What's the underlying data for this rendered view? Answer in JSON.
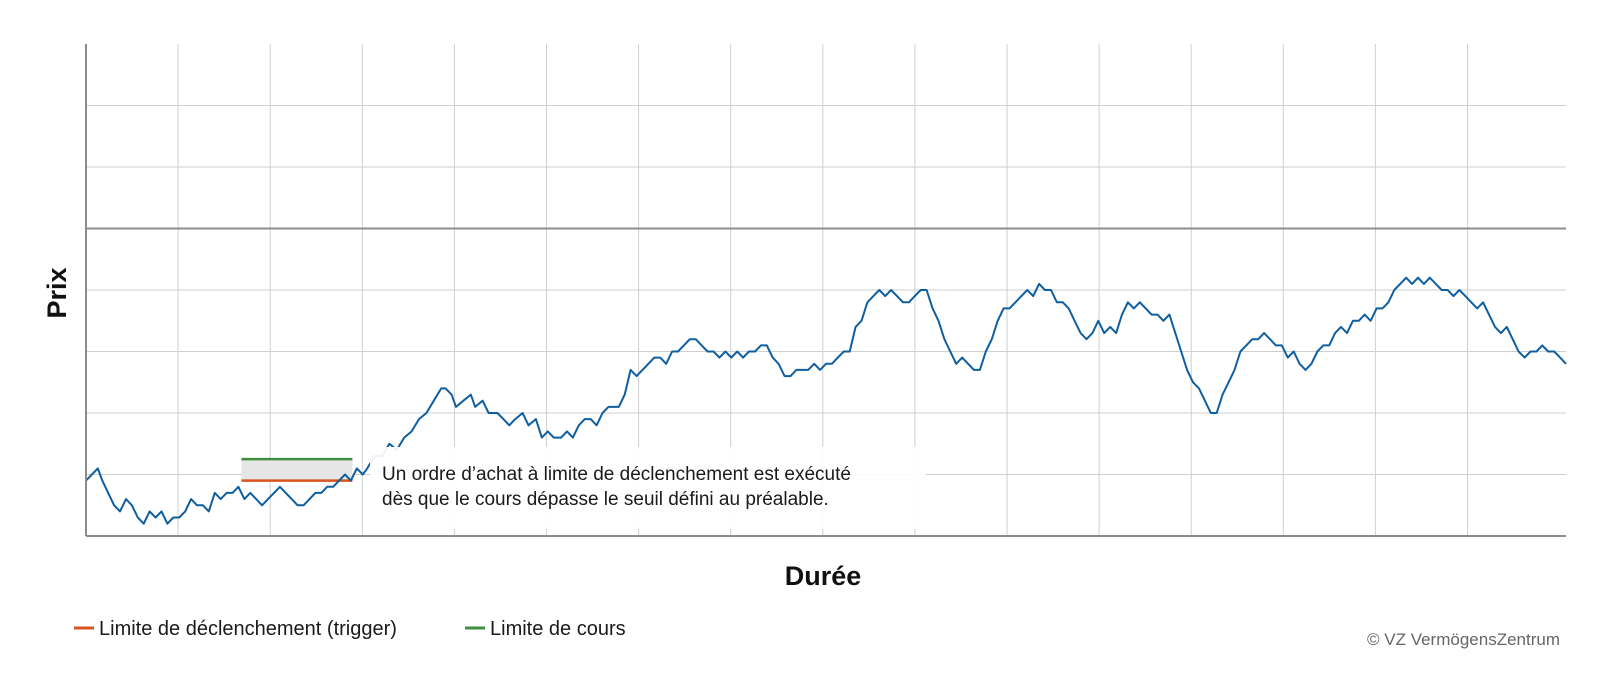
{
  "chart_data": {
    "type": "line",
    "title": "",
    "xlabel": "Durée",
    "ylabel": "Prix",
    "grid": true,
    "axis_tick_labels_shown": false,
    "reference_line": {
      "y": 50,
      "label": ""
    },
    "xlim": [
      0,
      100
    ],
    "ylim": [
      0,
      80
    ],
    "series": [
      {
        "name": "",
        "color": "#0f5fa0",
        "points": [
          [
            0,
            9
          ],
          [
            0.4,
            10
          ],
          [
            0.8,
            11
          ],
          [
            1.1,
            9
          ],
          [
            1.5,
            7
          ],
          [
            1.9,
            5
          ],
          [
            2.3,
            4
          ],
          [
            2.7,
            6
          ],
          [
            3.1,
            5
          ],
          [
            3.5,
            3
          ],
          [
            3.9,
            2
          ],
          [
            4.3,
            4
          ],
          [
            4.7,
            3
          ],
          [
            5.1,
            4
          ],
          [
            5.5,
            2
          ],
          [
            5.9,
            3
          ],
          [
            6.3,
            3
          ],
          [
            6.7,
            4
          ],
          [
            7.1,
            6
          ],
          [
            7.5,
            5
          ],
          [
            7.9,
            5
          ],
          [
            8.3,
            4
          ],
          [
            8.7,
            7
          ],
          [
            9.1,
            6
          ],
          [
            9.5,
            7
          ],
          [
            9.9,
            7
          ],
          [
            10.3,
            8
          ],
          [
            10.7,
            6
          ],
          [
            11.1,
            7
          ],
          [
            11.5,
            6
          ],
          [
            11.9,
            5
          ],
          [
            12.3,
            6
          ],
          [
            12.7,
            7
          ],
          [
            13.1,
            8
          ],
          [
            13.5,
            7
          ],
          [
            13.9,
            6
          ],
          [
            14.3,
            5
          ],
          [
            14.7,
            5
          ],
          [
            15.1,
            6
          ],
          [
            15.5,
            7
          ],
          [
            15.9,
            7
          ],
          [
            16.3,
            8
          ],
          [
            16.7,
            8
          ],
          [
            17.1,
            9
          ],
          [
            17.5,
            10
          ],
          [
            17.9,
            9
          ],
          [
            18.3,
            11
          ],
          [
            18.7,
            10
          ],
          [
            19,
            11
          ],
          [
            19.5,
            13
          ],
          [
            20,
            13
          ],
          [
            20.5,
            15
          ],
          [
            21,
            14
          ],
          [
            21.5,
            16
          ],
          [
            22,
            17
          ],
          [
            22.5,
            19
          ],
          [
            23,
            20
          ],
          [
            23.5,
            22
          ],
          [
            24,
            24
          ],
          [
            24.3,
            24
          ],
          [
            24.7,
            23
          ],
          [
            25,
            21
          ],
          [
            25.5,
            22
          ],
          [
            26,
            23
          ],
          [
            26.3,
            21
          ],
          [
            26.8,
            22
          ],
          [
            27.2,
            20
          ],
          [
            27.8,
            20
          ],
          [
            28.2,
            19
          ],
          [
            28.6,
            18
          ],
          [
            29,
            19
          ],
          [
            29.5,
            20
          ],
          [
            29.9,
            18
          ],
          [
            30.4,
            19
          ],
          [
            30.8,
            16
          ],
          [
            31.2,
            17
          ],
          [
            31.6,
            16
          ],
          [
            32.1,
            16
          ],
          [
            32.5,
            17
          ],
          [
            32.9,
            16
          ],
          [
            33.3,
            18
          ],
          [
            33.7,
            19
          ],
          [
            34.1,
            19
          ],
          [
            34.5,
            18
          ],
          [
            34.9,
            20
          ],
          [
            35.3,
            21
          ],
          [
            35.7,
            21
          ],
          [
            36,
            21
          ],
          [
            36.4,
            23
          ],
          [
            36.8,
            27
          ],
          [
            37.2,
            26
          ],
          [
            37.6,
            27
          ],
          [
            38,
            28
          ],
          [
            38.4,
            29
          ],
          [
            38.8,
            29
          ],
          [
            39.2,
            28
          ],
          [
            39.6,
            30
          ],
          [
            40,
            30
          ],
          [
            40.4,
            31
          ],
          [
            40.8,
            32
          ],
          [
            41.2,
            32
          ],
          [
            41.6,
            31
          ],
          [
            42,
            30
          ],
          [
            42.4,
            30
          ],
          [
            42.8,
            29
          ],
          [
            43.2,
            30
          ],
          [
            43.6,
            29
          ],
          [
            44,
            30
          ],
          [
            44.4,
            29
          ],
          [
            44.8,
            30
          ],
          [
            45.2,
            30
          ],
          [
            45.6,
            31
          ],
          [
            46,
            31
          ],
          [
            46.4,
            29
          ],
          [
            46.8,
            28
          ],
          [
            47.2,
            26
          ],
          [
            47.6,
            26
          ],
          [
            48,
            27
          ],
          [
            48.4,
            27
          ],
          [
            48.8,
            27
          ],
          [
            49.2,
            28
          ],
          [
            49.6,
            27
          ],
          [
            50,
            28
          ],
          [
            50.4,
            28
          ],
          [
            50.8,
            29
          ],
          [
            51.2,
            30
          ],
          [
            51.6,
            30
          ],
          [
            52,
            34
          ],
          [
            52.4,
            35
          ],
          [
            52.8,
            38
          ],
          [
            53.2,
            39
          ],
          [
            53.6,
            40
          ],
          [
            54,
            39
          ],
          [
            54.4,
            40
          ],
          [
            54.8,
            39
          ],
          [
            55.2,
            38
          ],
          [
            55.6,
            38
          ],
          [
            56,
            39
          ],
          [
            56.4,
            40
          ],
          [
            56.8,
            40
          ],
          [
            57.2,
            37
          ],
          [
            57.6,
            35
          ],
          [
            58,
            32
          ],
          [
            58.4,
            30
          ],
          [
            58.8,
            28
          ],
          [
            59.2,
            29
          ],
          [
            59.6,
            28
          ],
          [
            60,
            27
          ],
          [
            60.4,
            27
          ],
          [
            60.8,
            30
          ],
          [
            61.2,
            32
          ],
          [
            61.6,
            35
          ],
          [
            62,
            37
          ],
          [
            62.4,
            37
          ],
          [
            62.8,
            38
          ],
          [
            63.2,
            39
          ],
          [
            63.6,
            40
          ],
          [
            64,
            39
          ],
          [
            64.4,
            41
          ],
          [
            64.8,
            40
          ],
          [
            65.2,
            40
          ],
          [
            65.6,
            38
          ],
          [
            66,
            38
          ],
          [
            66.4,
            37
          ],
          [
            66.8,
            35
          ],
          [
            67.2,
            33
          ],
          [
            67.6,
            32
          ],
          [
            68,
            33
          ],
          [
            68.4,
            35
          ],
          [
            68.8,
            33
          ],
          [
            69.2,
            34
          ],
          [
            69.6,
            33
          ],
          [
            70,
            36
          ],
          [
            70.4,
            38
          ],
          [
            70.8,
            37
          ],
          [
            71.2,
            38
          ],
          [
            71.6,
            37
          ],
          [
            72,
            36
          ],
          [
            72.4,
            36
          ],
          [
            72.8,
            35
          ],
          [
            73.2,
            36
          ],
          [
            73.6,
            33
          ],
          [
            74,
            30
          ],
          [
            74.4,
            27
          ],
          [
            74.8,
            25
          ],
          [
            75.2,
            24
          ],
          [
            75.6,
            22
          ],
          [
            76,
            20
          ],
          [
            76.4,
            20
          ],
          [
            76.8,
            23
          ],
          [
            77.2,
            25
          ],
          [
            77.6,
            27
          ],
          [
            78,
            30
          ],
          [
            78.4,
            31
          ],
          [
            78.8,
            32
          ],
          [
            79.2,
            32
          ],
          [
            79.6,
            33
          ],
          [
            80,
            32
          ],
          [
            80.4,
            31
          ],
          [
            80.8,
            31
          ],
          [
            81.2,
            29
          ],
          [
            81.6,
            30
          ],
          [
            82,
            28
          ],
          [
            82.4,
            27
          ],
          [
            82.8,
            28
          ],
          [
            83.2,
            30
          ],
          [
            83.6,
            31
          ],
          [
            84,
            31
          ],
          [
            84.4,
            33
          ],
          [
            84.8,
            34
          ],
          [
            85.2,
            33
          ],
          [
            85.6,
            35
          ],
          [
            86,
            35
          ],
          [
            86.4,
            36
          ],
          [
            86.8,
            35
          ],
          [
            87.2,
            37
          ],
          [
            87.6,
            37
          ],
          [
            88,
            38
          ],
          [
            88.4,
            40
          ],
          [
            88.8,
            41
          ],
          [
            89.2,
            42
          ],
          [
            89.6,
            41
          ],
          [
            90,
            42
          ],
          [
            90.4,
            41
          ],
          [
            90.8,
            42
          ],
          [
            91.2,
            41
          ],
          [
            91.6,
            40
          ],
          [
            92,
            40
          ],
          [
            92.4,
            39
          ],
          [
            92.8,
            40
          ],
          [
            93.2,
            39
          ],
          [
            93.6,
            38
          ],
          [
            94,
            37
          ],
          [
            94.4,
            38
          ],
          [
            94.8,
            36
          ],
          [
            95.2,
            34
          ],
          [
            95.6,
            33
          ],
          [
            96,
            34
          ],
          [
            96.4,
            32
          ],
          [
            96.8,
            30
          ],
          [
            97.2,
            29
          ],
          [
            97.6,
            30
          ],
          [
            98,
            30
          ],
          [
            98.4,
            31
          ],
          [
            98.8,
            30
          ],
          [
            99.2,
            30
          ],
          [
            99.6,
            29
          ],
          [
            100,
            28
          ]
        ]
      }
    ],
    "trigger_zone": {
      "x_start": 10.5,
      "x_end": 18.0,
      "trigger_limit": 9.0,
      "price_limit": 12.5
    },
    "annotation": [
      "Un ordre d’achat à limite de déclenchement est exécuté",
      "dès que le cours dépasse le seuil défini au préalable."
    ],
    "legend": {
      "placement": "bottom-left",
      "items": [
        {
          "label": "Limite de déclenchement (trigger)",
          "color": "#d9541e"
        },
        {
          "label": "Limite de cours",
          "color": "#3f8f3f"
        }
      ]
    },
    "copyright": "© VZ VermögensZentrum"
  }
}
